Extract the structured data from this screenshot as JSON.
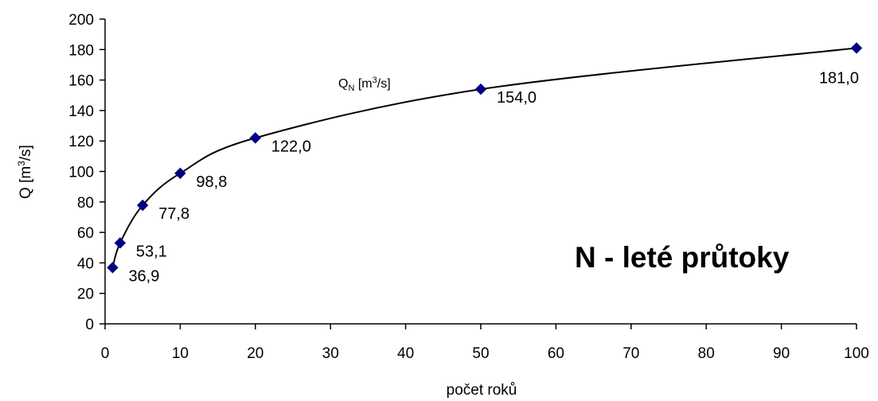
{
  "chart_data": {
    "type": "line",
    "title": "N - leté průtoky",
    "xlabel": "počet roků",
    "ylabel_base": "Q [m",
    "ylabel_sup": "3",
    "ylabel_end": "/s]",
    "xlim": [
      0,
      100
    ],
    "ylim": [
      0,
      200
    ],
    "xticks": [
      0,
      10,
      20,
      30,
      40,
      50,
      60,
      70,
      80,
      90,
      100
    ],
    "yticks": [
      0,
      20,
      40,
      60,
      80,
      100,
      120,
      140,
      160,
      180,
      200
    ],
    "grid": false,
    "series": [
      {
        "name_base": "Q",
        "name_sub": "N",
        "name_unit_start": " [m",
        "name_unit_sup": "3",
        "name_unit_end": "/s]",
        "x": [
          1,
          2,
          5,
          10,
          20,
          50,
          100
        ],
        "y": [
          36.9,
          53.1,
          77.8,
          98.8,
          122.0,
          154.0,
          181.0
        ],
        "labels": [
          "36,9",
          "53,1",
          "77,8",
          "98,8",
          "122,0",
          "154,0",
          "181,0"
        ]
      }
    ],
    "colors": {
      "marker": "#000080",
      "line": "#000000",
      "axis": "#000000"
    }
  }
}
